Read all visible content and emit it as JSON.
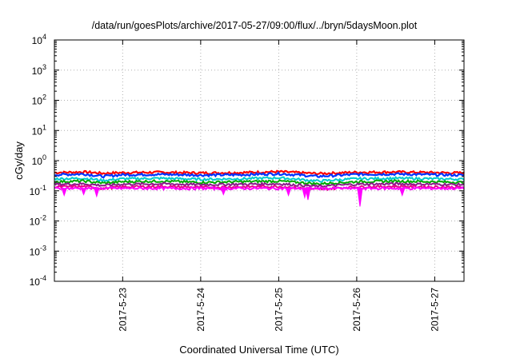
{
  "chart_data": {
    "type": "line",
    "title": "/data/run/goesPlots/archive/2017-05-27/09:00/flux/../bryn/5daysMoon.plot",
    "xlabel": "Coordinated Universal Time (UTC)",
    "ylabel": "cGy/day",
    "yscale": "log",
    "ylim": [
      0.0001,
      10000
    ],
    "y_ticks": [
      {
        "base": "10",
        "exp": "4"
      },
      {
        "base": "10",
        "exp": "3"
      },
      {
        "base": "10",
        "exp": "2"
      },
      {
        "base": "10",
        "exp": "1"
      },
      {
        "base": "10",
        "exp": "0"
      },
      {
        "base": "10",
        "exp": "-1"
      },
      {
        "base": "10",
        "exp": "-2"
      },
      {
        "base": "10",
        "exp": "-3"
      },
      {
        "base": "10",
        "exp": "-4"
      }
    ],
    "xlim": [
      "2017-05-22 03:00",
      "2017-05-27 09:00"
    ],
    "x_ticks": [
      "2017-5-23",
      "2017-5-24",
      "2017-5-25",
      "2017-5-26",
      "2017-5-27"
    ],
    "grid": true,
    "legend": "none",
    "series": [
      {
        "color": "#ff0000",
        "baseline": 0.4,
        "x": [
          "2017-05-22 03:00",
          "2017-05-22 12:00",
          "2017-05-22 18:00",
          "2017-05-23 00:00",
          "2017-05-23 12:00",
          "2017-05-24 00:00",
          "2017-05-24 12:00",
          "2017-05-25 00:00",
          "2017-05-25 12:00",
          "2017-05-26 00:00",
          "2017-05-26 12:00",
          "2017-05-27 00:00",
          "2017-05-27 09:00"
        ],
        "y": [
          0.4,
          0.42,
          0.38,
          0.4,
          0.41,
          0.39,
          0.4,
          0.43,
          0.37,
          0.41,
          0.42,
          0.4,
          0.39
        ]
      },
      {
        "color": "#0033ff",
        "baseline": 0.34,
        "x": [
          "2017-05-22 03:00",
          "2017-05-22 12:00",
          "2017-05-22 18:00",
          "2017-05-23 00:00",
          "2017-05-23 12:00",
          "2017-05-24 00:00",
          "2017-05-24 12:00",
          "2017-05-25 00:00",
          "2017-05-25 12:00",
          "2017-05-26 00:00",
          "2017-05-26 12:00",
          "2017-05-27 00:00",
          "2017-05-27 09:00"
        ],
        "y": [
          0.34,
          0.36,
          0.3,
          0.34,
          0.35,
          0.33,
          0.34,
          0.37,
          0.3,
          0.35,
          0.36,
          0.34,
          0.33
        ]
      },
      {
        "color": "#00cccc",
        "baseline": 0.25,
        "x": [
          "2017-05-22 03:00",
          "2017-05-22 12:00",
          "2017-05-22 18:00",
          "2017-05-23 00:00",
          "2017-05-23 12:00",
          "2017-05-24 00:00",
          "2017-05-24 12:00",
          "2017-05-25 00:00",
          "2017-05-25 12:00",
          "2017-05-26 00:00",
          "2017-05-26 12:00",
          "2017-05-27 00:00",
          "2017-05-27 09:00"
        ],
        "y": [
          0.25,
          0.26,
          0.22,
          0.25,
          0.26,
          0.24,
          0.25,
          0.27,
          0.21,
          0.25,
          0.26,
          0.25,
          0.24
        ]
      },
      {
        "color": "#00aa00",
        "baseline": 0.2,
        "x": [
          "2017-05-22 03:00",
          "2017-05-22 12:00",
          "2017-05-22 18:00",
          "2017-05-23 00:00",
          "2017-05-23 12:00",
          "2017-05-24 00:00",
          "2017-05-24 12:00",
          "2017-05-25 00:00",
          "2017-05-25 12:00",
          "2017-05-26 00:00",
          "2017-05-26 12:00",
          "2017-05-27 00:00",
          "2017-05-27 09:00"
        ],
        "y": [
          0.2,
          0.21,
          0.18,
          0.2,
          0.21,
          0.19,
          0.2,
          0.21,
          0.17,
          0.2,
          0.21,
          0.2,
          0.19
        ]
      },
      {
        "color": "#8a1a8a",
        "baseline": 0.165,
        "x": [
          "2017-05-22 03:00",
          "2017-05-22 12:00",
          "2017-05-22 18:00",
          "2017-05-23 00:00",
          "2017-05-23 12:00",
          "2017-05-24 00:00",
          "2017-05-24 12:00",
          "2017-05-25 00:00",
          "2017-05-25 12:00",
          "2017-05-26 00:00",
          "2017-05-26 12:00",
          "2017-05-27 00:00",
          "2017-05-27 09:00"
        ],
        "y": [
          0.165,
          0.17,
          0.15,
          0.165,
          0.17,
          0.16,
          0.165,
          0.17,
          0.14,
          0.165,
          0.17,
          0.165,
          0.16
        ]
      },
      {
        "color": "#e8008a",
        "baseline": 0.135,
        "x": [
          "2017-05-22 03:00",
          "2017-05-22 12:00",
          "2017-05-22 18:00",
          "2017-05-23 00:00",
          "2017-05-23 12:00",
          "2017-05-24 00:00",
          "2017-05-24 12:00",
          "2017-05-25 00:00",
          "2017-05-25 12:00",
          "2017-05-26 00:00",
          "2017-05-26 12:00",
          "2017-05-27 00:00",
          "2017-05-27 09:00"
        ],
        "y": [
          0.135,
          0.14,
          0.12,
          0.135,
          0.14,
          0.13,
          0.135,
          0.14,
          0.11,
          0.135,
          0.14,
          0.135,
          0.13
        ]
      },
      {
        "color": "#ff00ff",
        "baseline": 0.12,
        "x": [
          "2017-05-22 03:00",
          "2017-05-22 06:00",
          "2017-05-22 09:00",
          "2017-05-22 12:00",
          "2017-05-22 16:00",
          "2017-05-22 18:00",
          "2017-05-23 00:00",
          "2017-05-23 12:00",
          "2017-05-24 07:00",
          "2017-05-24 12:00",
          "2017-05-25 00:00",
          "2017-05-25 03:00",
          "2017-05-25 06:00",
          "2017-05-25 08:00",
          "2017-05-25 09:00",
          "2017-05-25 12:00",
          "2017-05-26 00:00",
          "2017-05-26 01:00",
          "2017-05-26 12:00",
          "2017-05-26 14:00",
          "2017-05-27 00:00",
          "2017-05-27 09:00"
        ],
        "y": [
          0.12,
          0.07,
          0.12,
          0.075,
          0.065,
          0.12,
          0.12,
          0.12,
          0.075,
          0.12,
          0.12,
          0.07,
          0.12,
          0.06,
          0.05,
          0.12,
          0.12,
          0.03,
          0.12,
          0.07,
          0.12,
          0.11
        ]
      }
    ],
    "dips": [
      {
        "x": "2017-05-22 06:00",
        "y": 0.07
      },
      {
        "x": "2017-05-22 12:00",
        "y": 0.075
      },
      {
        "x": "2017-05-22 16:00",
        "y": 0.065
      },
      {
        "x": "2017-05-24 07:00",
        "y": 0.075
      },
      {
        "x": "2017-05-25 03:00",
        "y": 0.07
      },
      {
        "x": "2017-05-25 08:00",
        "y": 0.06
      },
      {
        "x": "2017-05-25 09:00",
        "y": 0.05
      },
      {
        "x": "2017-05-26 01:00",
        "y": 0.03
      },
      {
        "x": "2017-05-26 14:00",
        "y": 0.07
      }
    ]
  }
}
